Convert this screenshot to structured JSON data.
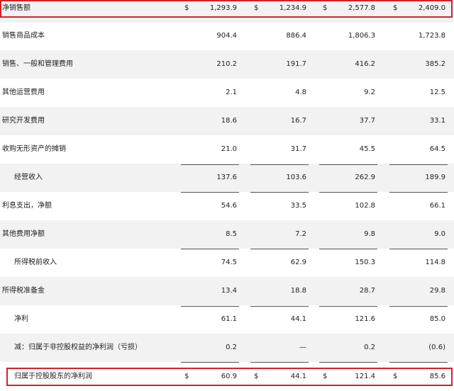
{
  "highlight_color": "#d62027",
  "rows": [
    {
      "label": "净销售额",
      "currency": true,
      "values": [
        "1,293.9",
        "1,234.9",
        "2,577.8",
        "2,409.0"
      ]
    },
    {
      "label": "销售商品成本",
      "values": [
        "904.4",
        "886.4",
        "1,806.3",
        "1,723.8"
      ]
    },
    {
      "label": "销售、一般和管理费用",
      "values": [
        "210.2",
        "191.7",
        "416.2",
        "385.2"
      ]
    },
    {
      "label": "其他运营费用",
      "values": [
        "2.1",
        "4.8",
        "9.2",
        "12.5"
      ]
    },
    {
      "label": "研究开发费用",
      "values": [
        "18.6",
        "16.7",
        "37.7",
        "33.1"
      ]
    },
    {
      "label": "收购无形资产的摊销",
      "values": [
        "21.0",
        "31.7",
        "45.5",
        "64.5"
      ]
    },
    {
      "label": "经营收入",
      "indent": true,
      "values": [
        "137.6",
        "103.6",
        "262.9",
        "189.9"
      ]
    },
    {
      "label": "利息支出，净额",
      "values": [
        "54.6",
        "33.5",
        "102.8",
        "66.1"
      ]
    },
    {
      "label": "其他费用净额",
      "values": [
        "8.5",
        "7.2",
        "9.8",
        "9.0"
      ]
    },
    {
      "label": "所得税前收入",
      "indent": true,
      "values": [
        "74.5",
        "62.9",
        "150.3",
        "114.8"
      ]
    },
    {
      "label": "所得税准备金",
      "values": [
        "13.4",
        "18.8",
        "28.7",
        "29.8"
      ]
    },
    {
      "label": "净利",
      "indent": true,
      "values": [
        "61.1",
        "44.1",
        "121.6",
        "85.0"
      ]
    },
    {
      "label": "减：归属于非控股权益的净利润（亏损）",
      "indent": true,
      "values": [
        "0.2",
        "—",
        "0.2",
        "(0.6)"
      ]
    },
    {
      "label": "归属于控股股东的净利润",
      "indent": true,
      "currency": true,
      "values": [
        "60.9",
        "44.1",
        "121.4",
        "85.6"
      ]
    }
  ],
  "currency_symbol": "$"
}
